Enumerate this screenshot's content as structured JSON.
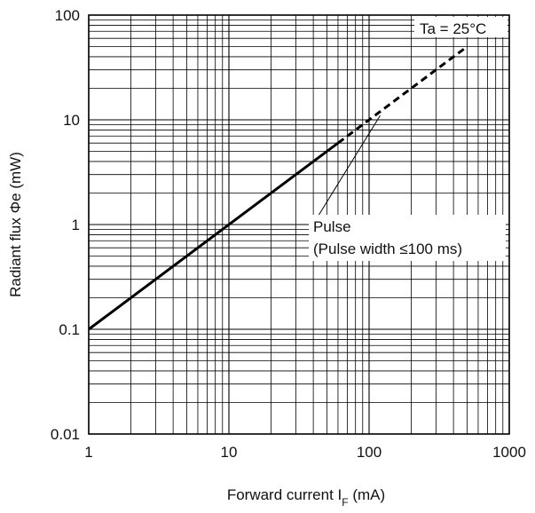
{
  "chart_data": {
    "type": "line",
    "title": "",
    "xlabel": "Forward current I",
    "xlabel_sub": "F",
    "xlabel_unit": " (mA)",
    "ylabel": "Radiant flux Φe (mW)",
    "x_scale": "log",
    "y_scale": "log",
    "xlim": [
      1,
      1000
    ],
    "ylim": [
      0.01,
      100
    ],
    "x_ticks": [
      1,
      10,
      100,
      1000
    ],
    "x_tick_labels": [
      "1",
      "10",
      "100",
      "1000"
    ],
    "y_ticks": [
      0.01,
      0.1,
      1,
      10,
      100
    ],
    "y_tick_labels": [
      "0.01",
      "0.1",
      "1",
      "10",
      "100"
    ],
    "grid": true,
    "series": [
      {
        "style": "solid",
        "x": [
          1,
          60
        ],
        "y": [
          0.1,
          6
        ]
      },
      {
        "style": "dashed",
        "x": [
          60,
          500
        ],
        "y": [
          6,
          50
        ]
      }
    ],
    "annotations": {
      "condition": "Ta = 25°C",
      "pulse_line1": "Pulse",
      "pulse_line2": "(Pulse width ≤100 ms)",
      "pulse_pointer_target": {
        "x": 120,
        "y": 11
      }
    },
    "colors": {
      "line": "#000000",
      "grid": "#000000",
      "background": "#ffffff"
    }
  }
}
